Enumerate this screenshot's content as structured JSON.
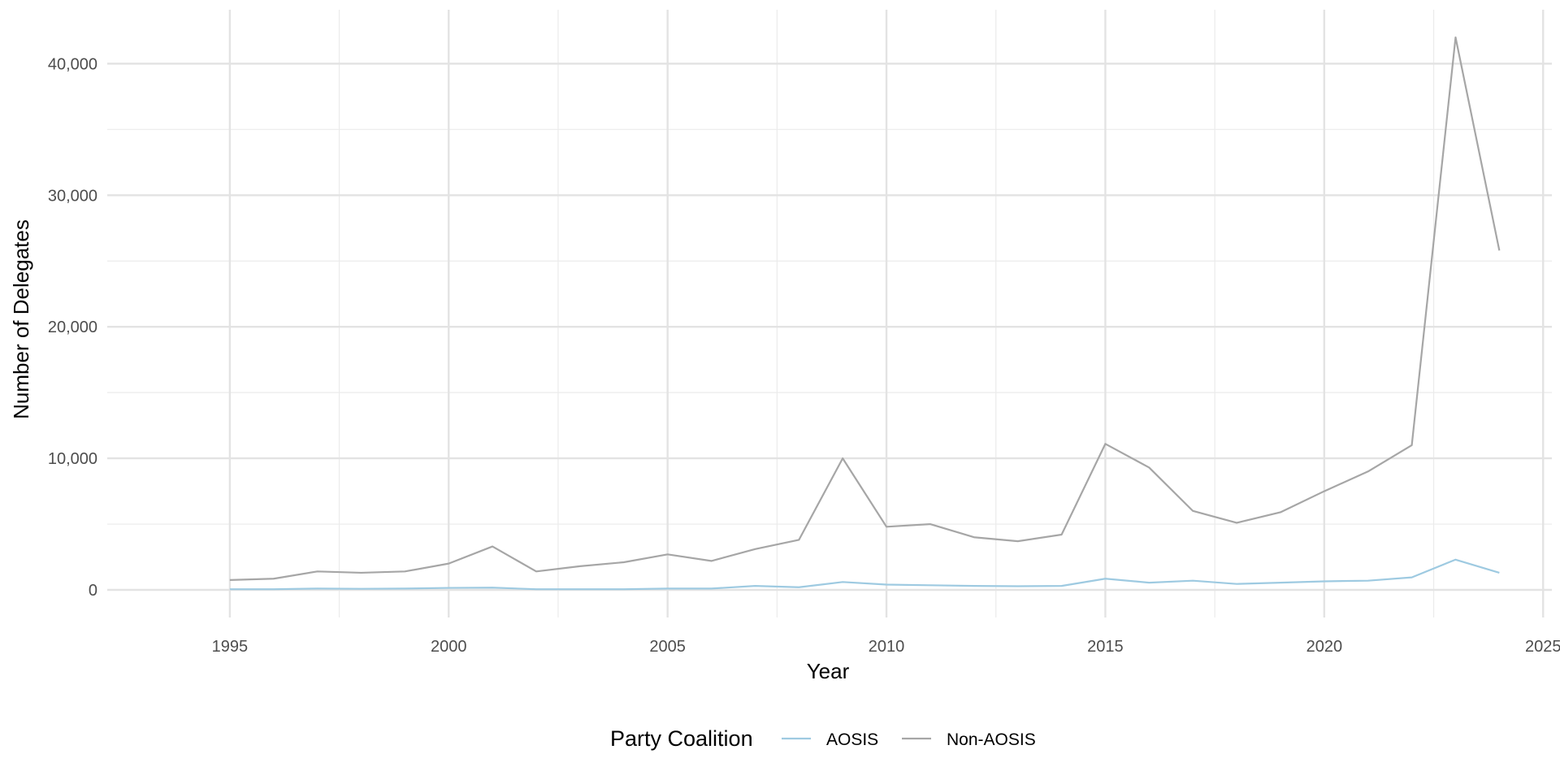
{
  "chart_data": {
    "type": "line",
    "xlabel": "Year",
    "ylabel": "Number of Delegates",
    "xlim": [
      1992.2,
      2025.2
    ],
    "ylim": [
      -2100,
      44100
    ],
    "x_ticks": [
      1995,
      2000,
      2005,
      2010,
      2015,
      2020,
      2025
    ],
    "x_tick_labels": [
      "1995",
      "2000",
      "2005",
      "2010",
      "2015",
      "2020",
      "2025"
    ],
    "y_ticks": [
      0,
      10000,
      20000,
      30000,
      40000
    ],
    "y_tick_labels": [
      "0",
      "10,000",
      "20,000",
      "30,000",
      "40,000"
    ],
    "grid": true,
    "legend": {
      "title": "Party Coalition",
      "position": "bottom"
    },
    "x": [
      1995,
      1996,
      1997,
      1998,
      1999,
      2000,
      2001,
      2002,
      2003,
      2004,
      2005,
      2006,
      2007,
      2008,
      2009,
      2010,
      2011,
      2012,
      2013,
      2014,
      2015,
      2016,
      2017,
      2018,
      2019,
      2020,
      2021,
      2022,
      2023,
      2024
    ],
    "series": [
      {
        "name": "AOSIS",
        "color": "#9ecae1",
        "values": [
          50,
          50,
          100,
          80,
          100,
          150,
          170,
          50,
          50,
          50,
          100,
          100,
          300,
          200,
          600,
          400,
          350,
          300,
          280,
          300,
          850,
          550,
          700,
          450,
          550,
          650,
          700,
          950,
          2300,
          1300
        ]
      },
      {
        "name": "Non-AOSIS",
        "color": "#a6a6a6",
        "values": [
          750,
          850,
          1400,
          1300,
          1400,
          2000,
          3300,
          1400,
          1800,
          2100,
          2700,
          2200,
          3100,
          3800,
          10000,
          4800,
          5000,
          4000,
          3700,
          4200,
          11100,
          9300,
          6000,
          5100,
          5900,
          7500,
          9000,
          11000,
          42000,
          25800
        ]
      }
    ]
  }
}
